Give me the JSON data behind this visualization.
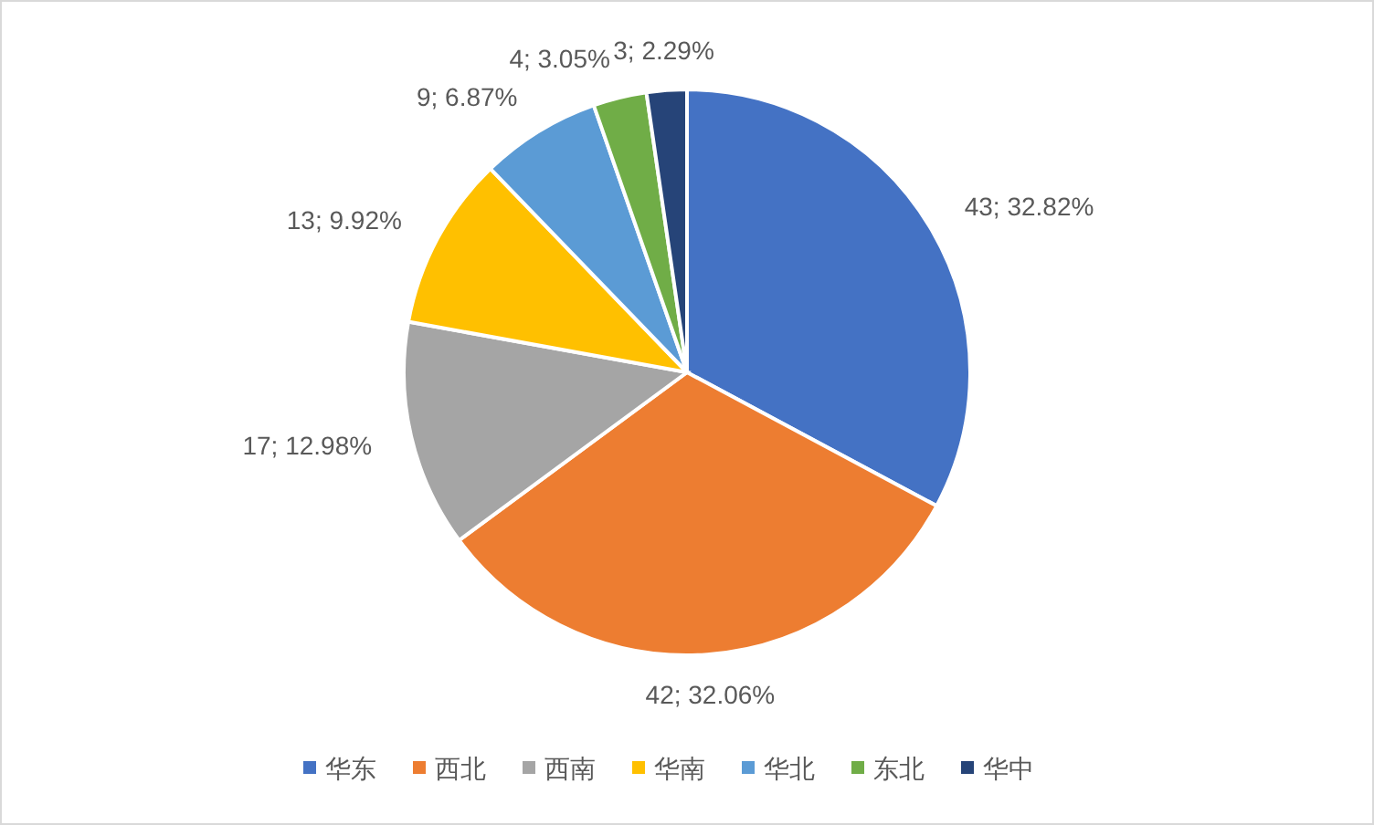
{
  "chart_data": {
    "type": "pie",
    "categories": [
      "华东",
      "西北",
      "西南",
      "华南",
      "华北",
      "东北",
      "华中"
    ],
    "values": [
      43,
      42,
      17,
      13,
      9,
      4,
      3
    ],
    "colors": [
      "#4472c4",
      "#ed7d31",
      "#a5a5a5",
      "#ffc000",
      "#5b9bd5",
      "#70ad47",
      "#264478"
    ],
    "value_labels": [
      "43; 32.82%",
      "42; 32.06%",
      "17; 12.98%",
      "13; 9.92%",
      "9; 6.87%",
      "4; 3.05%",
      "3; 2.29%"
    ],
    "legend": "bottom"
  }
}
